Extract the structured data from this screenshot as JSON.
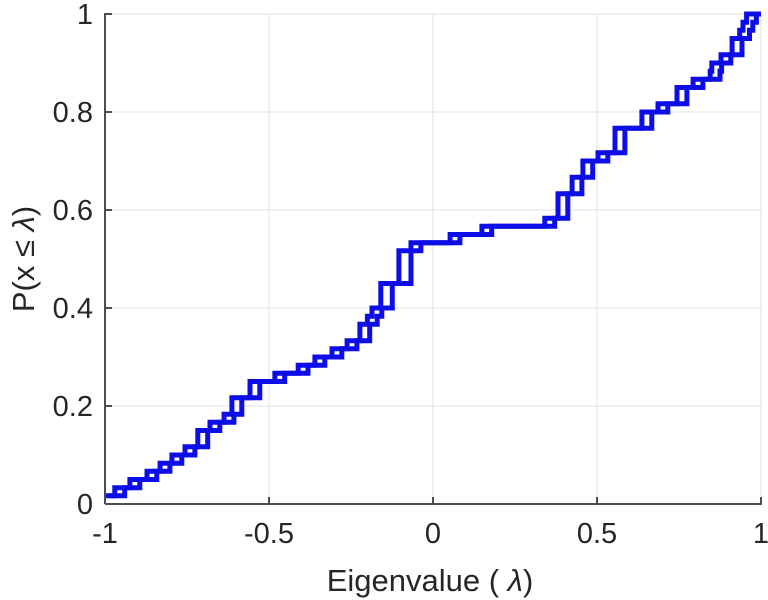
{
  "chart_data": {
    "type": "line",
    "subtype": "ecdf-stairs",
    "title": "",
    "xlabel_prefix": "Eigenvalue ( ",
    "xlabel_symbol": "λ",
    "xlabel_suffix": ")",
    "ylabel_prefix": "P(x ≤ ",
    "ylabel_symbol": "λ",
    "ylabel_suffix": ")",
    "xlim": [
      -1,
      1
    ],
    "ylim": [
      0,
      1
    ],
    "x_ticks": [
      -1,
      -0.5,
      0,
      0.5,
      1
    ],
    "x_tick_labels": [
      "-1",
      "-0.5",
      "0",
      "0.5",
      "1"
    ],
    "y_ticks": [
      0,
      0.2,
      0.4,
      0.6,
      0.8,
      1
    ],
    "y_tick_labels": [
      "0",
      "0.2",
      "0.4",
      "0.6",
      "0.8",
      "1"
    ],
    "grid": true,
    "legend": "none",
    "n_points_per_series": 60,
    "line_color": "#0d0de8",
    "axis_color": "#4d4d4d",
    "text_color": "#262626",
    "grid_color": "#e5e5e5",
    "background_color": "#ffffff",
    "series": [
      {
        "name": "ecdf-series-1",
        "eigenvalues": [
          -1.0,
          -0.97,
          -0.924,
          -0.872,
          -0.832,
          -0.796,
          -0.756,
          -0.717,
          -0.717,
          -0.68,
          -0.637,
          -0.613,
          -0.613,
          -0.558,
          -0.558,
          -0.482,
          -0.411,
          -0.36,
          -0.308,
          -0.262,
          -0.223,
          -0.223,
          -0.2,
          -0.186,
          -0.159,
          -0.159,
          -0.159,
          -0.104,
          -0.104,
          -0.104,
          -0.104,
          -0.067,
          0.052,
          0.149,
          0.341,
          0.381,
          0.381,
          0.381,
          0.424,
          0.424,
          0.457,
          0.457,
          0.503,
          0.555,
          0.555,
          0.555,
          0.637,
          0.637,
          0.686,
          0.744,
          0.744,
          0.793,
          0.845,
          0.85,
          0.878,
          0.912,
          0.912,
          0.935,
          0.945,
          0.956
        ]
      },
      {
        "name": "ecdf-series-2",
        "eigenvalues": [
          -0.99,
          -0.94,
          -0.894,
          -0.842,
          -0.802,
          -0.766,
          -0.726,
          -0.687,
          -0.687,
          -0.65,
          -0.607,
          -0.583,
          -0.583,
          -0.528,
          -0.528,
          -0.452,
          -0.381,
          -0.33,
          -0.278,
          -0.232,
          -0.193,
          -0.193,
          -0.17,
          -0.156,
          -0.124,
          -0.124,
          -0.124,
          -0.067,
          -0.067,
          -0.067,
          -0.067,
          -0.037,
          0.082,
          0.179,
          0.371,
          0.411,
          0.411,
          0.411,
          0.454,
          0.454,
          0.487,
          0.487,
          0.533,
          0.585,
          0.585,
          0.585,
          0.667,
          0.667,
          0.716,
          0.774,
          0.774,
          0.823,
          0.875,
          0.88,
          0.908,
          0.942,
          0.942,
          0.965,
          0.975,
          0.986
        ]
      }
    ]
  }
}
